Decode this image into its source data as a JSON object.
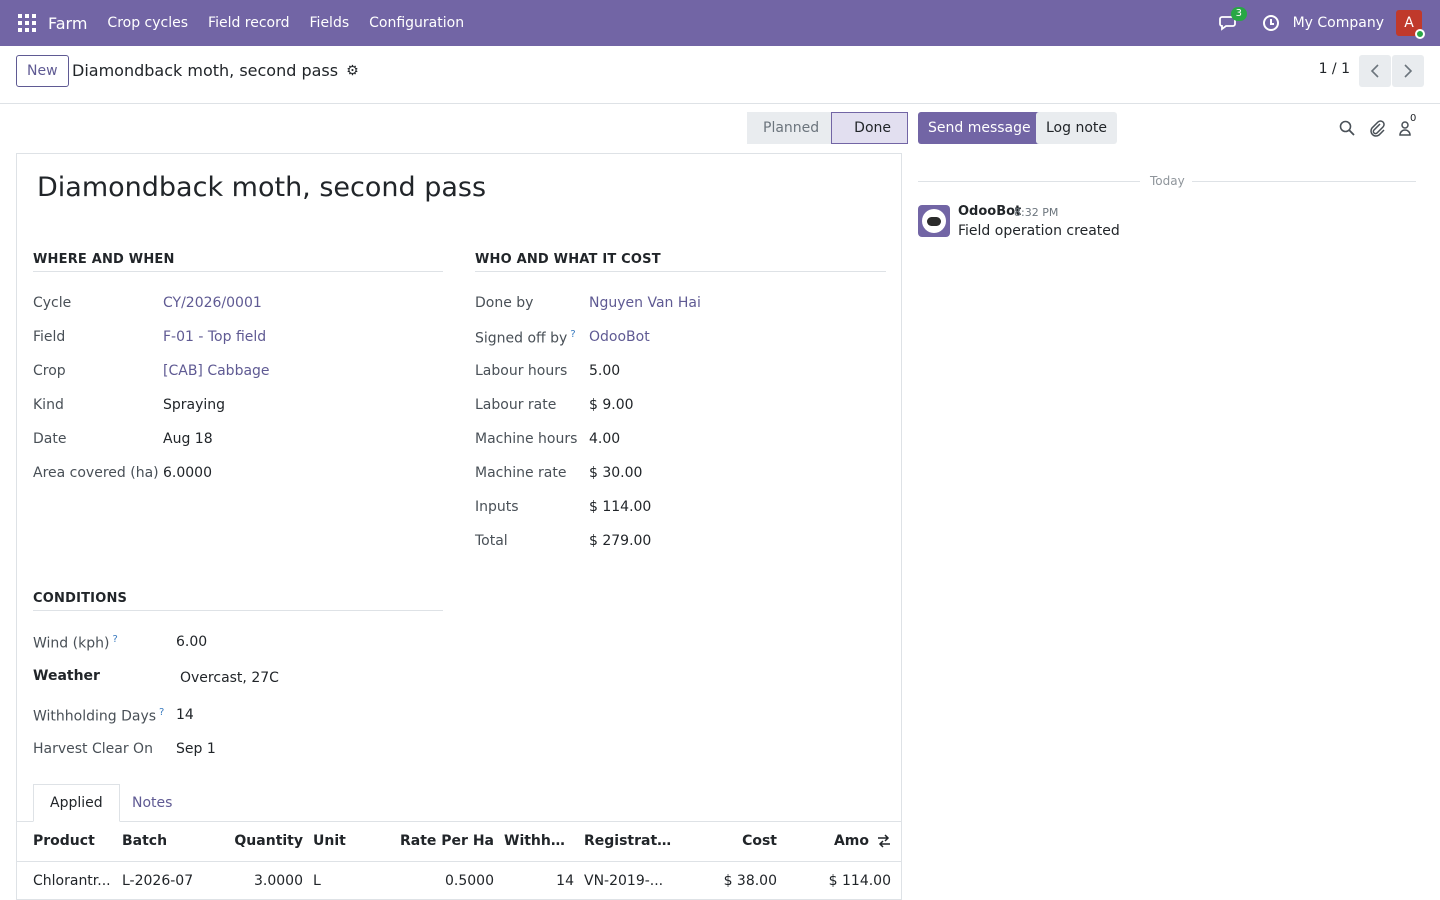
{
  "nav": {
    "brand": "Farm",
    "items": [
      "Crop cycles",
      "Field record",
      "Fields",
      "Configuration"
    ],
    "chat_count": "3",
    "company": "My Company",
    "avatar_letter": "A"
  },
  "control": {
    "new_label": "New",
    "breadcrumb": "Diamondback moth, second pass",
    "pager": "1 / 1"
  },
  "status": {
    "stages": [
      "Planned",
      "Done"
    ],
    "current": "Done"
  },
  "form": {
    "title": "Diamondback moth, second pass",
    "where_when": {
      "heading": "WHERE AND WHEN",
      "fields": [
        {
          "label": "Cycle",
          "value": "CY/2026/0001"
        },
        {
          "label": "Field",
          "value": "F-01 - Top field"
        },
        {
          "label": "Crop",
          "value": "[CAB] Cabbage"
        },
        {
          "label": "Kind",
          "value": "Spraying"
        },
        {
          "label": "Date",
          "value": "Aug 18"
        },
        {
          "label": "Area covered (ha)",
          "value": "6.0000"
        }
      ]
    },
    "who_cost": {
      "heading": "WHO AND WHAT IT COST",
      "fields": [
        {
          "label": "Done by",
          "value": "Nguyen Van Hai"
        },
        {
          "label": "Signed off by",
          "value": "OdooBot"
        },
        {
          "label": "Labour hours",
          "value": "5.00"
        },
        {
          "label": "Labour rate",
          "value": "$ 9.00"
        },
        {
          "label": "Machine hours",
          "value": "4.00"
        },
        {
          "label": "Machine rate",
          "value": "$ 30.00"
        },
        {
          "label": "Inputs",
          "value": "$ 114.00"
        },
        {
          "label": "Total",
          "value": "$ 279.00"
        }
      ]
    },
    "conditions": {
      "heading": "CONDITIONS",
      "fields": [
        {
          "label": "Wind (kph)",
          "value": "6.00"
        },
        {
          "label": "Weather",
          "value": "Overcast, 27C"
        },
        {
          "label": "Withholding Days",
          "value": "14"
        },
        {
          "label": "Harvest Clear On",
          "value": "Sep 1"
        }
      ]
    },
    "help_mark": "?"
  },
  "tabs": [
    "Applied",
    "Notes"
  ],
  "table": {
    "columns": [
      "Product",
      "Batch",
      "Quantity",
      "Unit",
      "Rate Per Ha",
      "Withhol...",
      "Registrati...",
      "Cost",
      "Amo"
    ],
    "rows": [
      [
        "Chlorantr...",
        "L-2026-07",
        "3.0000",
        "L",
        "0.5000",
        "14",
        "VN-2019-...",
        "$ 38.00",
        "$ 114.00"
      ]
    ]
  },
  "chatter": {
    "send_label": "Send message",
    "log_label": "Log note",
    "follower_count": "0",
    "day_label": "Today",
    "message": {
      "author": "OdooBot",
      "time": "8:32 PM",
      "body": "Field operation created"
    }
  }
}
